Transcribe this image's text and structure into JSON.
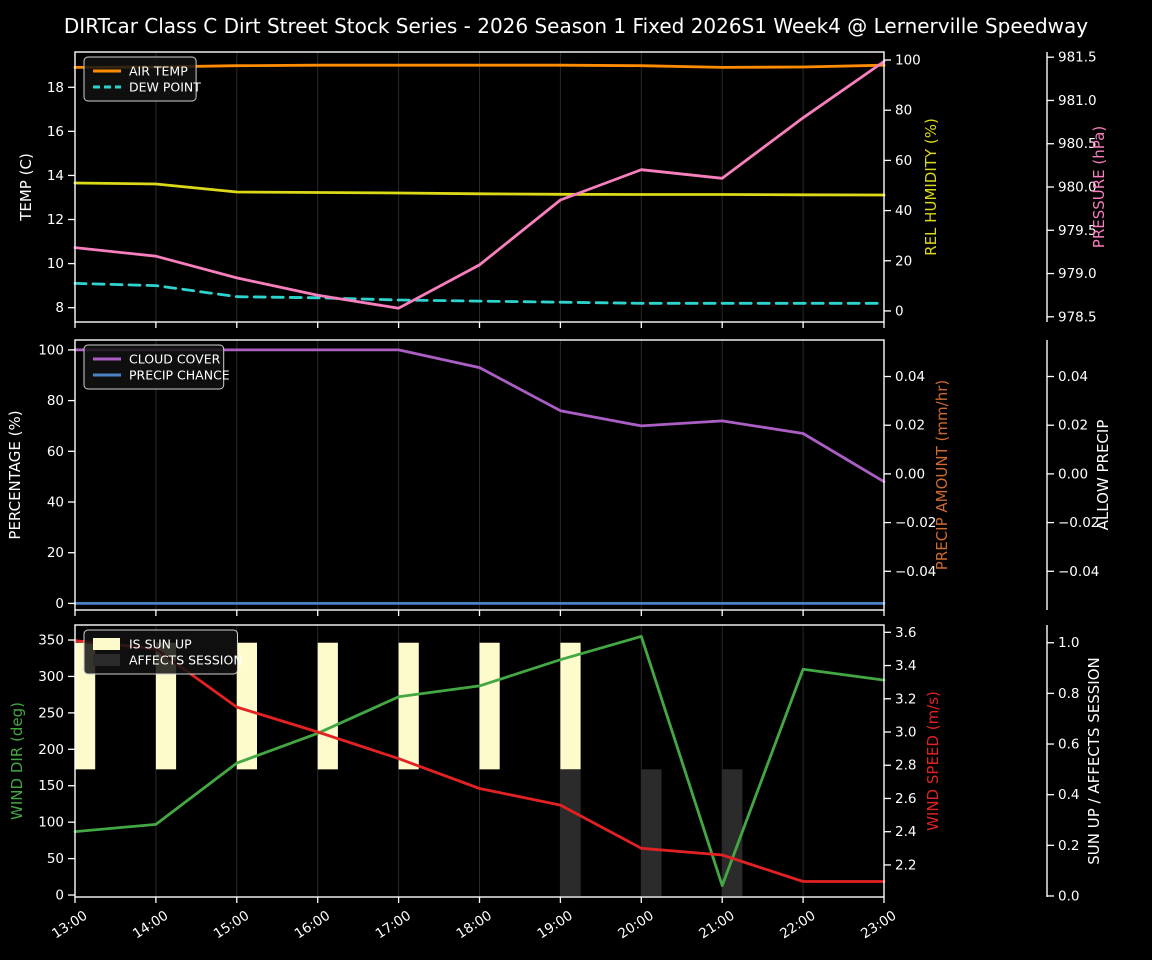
{
  "title": "DIRTcar Class C Dirt Street Stock Series - 2026 Season 1 Fixed 2026S1 Week4 @ Lernerville Speedway",
  "background": "#000000",
  "x_axis": {
    "hours": [
      13,
      14,
      15,
      16,
      17,
      18,
      19,
      20,
      21,
      22,
      23
    ],
    "labels": [
      "13:00",
      "14:00",
      "15:00",
      "16:00",
      "17:00",
      "18:00",
      "19:00",
      "20:00",
      "21:00",
      "22:00",
      "23:00"
    ]
  },
  "chart_data": [
    {
      "id": "temperature-panel",
      "type": "line",
      "show_x_labels": false,
      "axes": {
        "left": {
          "key": "temp",
          "label": "TEMP (C)",
          "label_color": "#ffffff",
          "ticks": [
            "8",
            "10",
            "12",
            "14",
            "16",
            "18"
          ],
          "tick_values": [
            8,
            10,
            12,
            14,
            16,
            18
          ],
          "range": [
            7.35,
            19.6
          ]
        },
        "right_inner": {
          "key": "humidity",
          "label": "REL HUMIDITY (%)",
          "label_color": "#dcd919",
          "ticks": [
            "0",
            "20",
            "40",
            "60",
            "80",
            "100"
          ],
          "tick_values": [
            0,
            20,
            40,
            60,
            80,
            100
          ],
          "range": [
            -4.4,
            103.2
          ]
        },
        "right_outer": {
          "key": "pressure",
          "label": "PRESSURE (hPa)",
          "label_color": "#f77fbe",
          "ticks": [
            "978.5",
            "979.0",
            "979.5",
            "980.0",
            "980.5",
            "981.0",
            "981.5"
          ],
          "tick_values": [
            978.5,
            979.0,
            979.5,
            980.0,
            980.5,
            981.0,
            981.5
          ],
          "range": [
            978.44,
            981.56
          ]
        }
      },
      "series": [
        {
          "name": "AIR TEMP",
          "axis": "temp",
          "color": "#ff8c00",
          "dash": false,
          "values": [
            18.9,
            18.92,
            18.98,
            19.0,
            19.0,
            19.0,
            19.0,
            18.98,
            18.9,
            18.92,
            19.0
          ]
        },
        {
          "name": "DEW POINT",
          "axis": "temp",
          "color": "#2ed3cd",
          "dash": true,
          "values": [
            9.1,
            9.0,
            8.5,
            8.45,
            8.35,
            8.3,
            8.25,
            8.2,
            8.2,
            8.2,
            8.2
          ]
        },
        {
          "name": "REL HUMIDITY",
          "axis": "humidity",
          "color": "#dcd919",
          "dash": false,
          "values": [
            51,
            50.6,
            47.4,
            47.2,
            47.0,
            46.7,
            46.5,
            46.4,
            46.4,
            46.3,
            46.2
          ]
        },
        {
          "name": "PRESSURE",
          "axis": "pressure",
          "color": "#f77fbe",
          "dash": false,
          "values": [
            979.3,
            979.2,
            978.95,
            978.75,
            978.6,
            979.1,
            979.85,
            980.2,
            980.1,
            980.8,
            981.45
          ]
        }
      ],
      "legend": [
        {
          "label": "AIR TEMP",
          "color": "#ff8c00",
          "dash": false,
          "patch": false
        },
        {
          "label": "DEW POINT",
          "color": "#2ed3cd",
          "dash": true,
          "patch": false
        }
      ]
    },
    {
      "id": "precipitation-panel",
      "type": "line",
      "show_x_labels": false,
      "axes": {
        "left": {
          "key": "percentage",
          "label": "PERCENTAGE (%)",
          "label_color": "#ffffff",
          "ticks": [
            "0",
            "20",
            "40",
            "60",
            "80",
            "100"
          ],
          "tick_values": [
            0,
            20,
            40,
            60,
            80,
            100
          ],
          "range": [
            -2.6,
            103.9
          ]
        },
        "right_inner": {
          "key": "precipamount",
          "label": "PRECIP AMOUNT (mm/hr)",
          "label_color": "#cd6a33",
          "ticks": [
            "0.04",
            "0.02",
            "0.00",
            "−0.02",
            "−0.04"
          ],
          "tick_values": [
            0.04,
            0.02,
            0.0,
            -0.02,
            -0.04
          ],
          "range": [
            -0.0559,
            0.055
          ]
        },
        "right_outer": {
          "key": "allowprecip",
          "label": "ALLOW PRECIP",
          "label_color": "#ffffff",
          "ticks": [
            "0.04",
            "0.02",
            "0.00",
            "−0.02",
            "−0.04"
          ],
          "tick_values": [
            0.04,
            0.02,
            0.0,
            -0.02,
            -0.04
          ],
          "range": [
            -0.0559,
            0.055
          ]
        }
      },
      "series": [
        {
          "name": "CLOUD COVER",
          "axis": "percentage",
          "color": "#ab5fc4",
          "dash": false,
          "values": [
            100,
            100,
            100,
            100,
            100,
            93,
            76,
            70,
            72,
            67,
            48
          ]
        },
        {
          "name": "PRECIP CHANCE",
          "axis": "percentage",
          "color": "#4b82c4",
          "dash": false,
          "values": [
            0,
            0,
            0,
            0,
            0,
            0,
            0,
            0,
            0,
            0,
            0
          ]
        }
      ],
      "legend": [
        {
          "label": "CLOUD COVER",
          "color": "#ab5fc4",
          "dash": false,
          "patch": false
        },
        {
          "label": "PRECIP CHANCE",
          "color": "#4b82c4",
          "dash": false,
          "patch": false
        }
      ]
    },
    {
      "id": "wind-panel",
      "type": "line",
      "show_x_labels": true,
      "axes": {
        "left": {
          "key": "winddir",
          "label": "WIND DIR (deg)",
          "label_color": "#43a843",
          "ticks": [
            "0",
            "50",
            "100",
            "150",
            "200",
            "250",
            "300",
            "350"
          ],
          "tick_values": [
            0,
            50,
            100,
            150,
            200,
            250,
            300,
            350
          ],
          "range": [
            -2.7,
            370.6
          ]
        },
        "right_inner": {
          "key": "windspeed",
          "label": "WIND SPEED (m/s)",
          "label_color": "#e22222",
          "ticks": [
            "2.2",
            "2.4",
            "2.6",
            "2.8",
            "3.0",
            "3.2",
            "3.4",
            "3.6"
          ],
          "tick_values": [
            2.2,
            2.4,
            2.6,
            2.8,
            3.0,
            3.2,
            3.4,
            3.6
          ],
          "range": [
            2.007,
            3.644
          ]
        },
        "right_outer": {
          "key": "sun",
          "label": "SUN UP / AFFECTS SESSION",
          "label_color": "#ffffff",
          "ticks": [
            "0.0",
            "0.2",
            "0.4",
            "0.6",
            "0.8",
            "1.0"
          ],
          "tick_values": [
            0.0,
            0.2,
            0.4,
            0.6,
            0.8,
            1.0
          ],
          "range": [
            -0.004,
            1.07
          ]
        }
      },
      "bars": [
        {
          "name": "IS SUN UP",
          "axis": "sun",
          "color": "#fdfacb",
          "from": 0.5,
          "to": 1.0,
          "per_hour": [
            1,
            1,
            1,
            1,
            1,
            1,
            1,
            0,
            0,
            0,
            0
          ],
          "hours_true": [
            13,
            14,
            15,
            16,
            17,
            18,
            19
          ]
        },
        {
          "name": "AFFECTS SESSION",
          "axis": "sun",
          "color": "#2b2b2b",
          "from": 0.0,
          "to": 0.5,
          "per_hour": [
            0,
            0,
            0,
            0,
            0,
            0,
            1,
            1,
            1,
            0,
            0
          ],
          "hours_true": [
            19,
            20,
            21
          ]
        }
      ],
      "series": [
        {
          "name": "WIND DIR",
          "axis": "winddir",
          "color": "#43a843",
          "dash": false,
          "values": [
            87,
            97,
            181,
            222,
            272,
            287,
            323,
            355,
            13,
            310,
            295
          ]
        },
        {
          "name": "WIND SPEED",
          "axis": "windspeed",
          "color": "#e22222",
          "dash": false,
          "values": [
            3.55,
            3.5,
            3.15,
            3.0,
            2.84,
            2.66,
            2.56,
            2.3,
            2.26,
            2.1,
            2.1
          ]
        }
      ],
      "legend": [
        {
          "label": "IS SUN UP",
          "color": "#fdfacb",
          "dash": false,
          "patch": true
        },
        {
          "label": "AFFECTS SESSION",
          "color": "#2b2b2b",
          "dash": false,
          "patch": true
        }
      ]
    }
  ]
}
